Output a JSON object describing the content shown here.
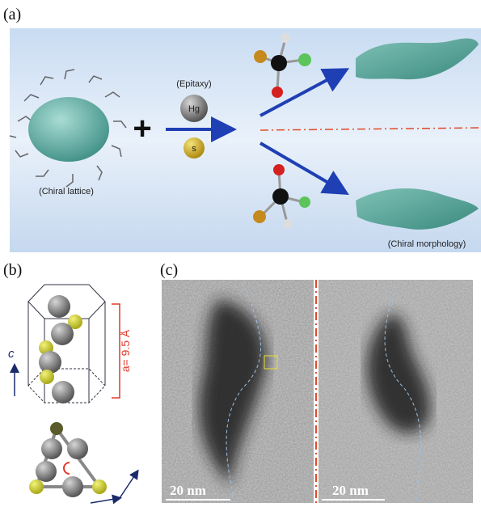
{
  "panels": {
    "a": {
      "label": "(a)",
      "plus": "+",
      "epitaxy": "(Epitaxy)",
      "hg": "Hg",
      "s": "s",
      "chiral_lattice": "(Chiral lattice)",
      "chiral_morphology": "(Chiral morphology)"
    },
    "b": {
      "label": "(b)",
      "axis_c": "c",
      "lattice_constant": "a= 9.5 Å"
    },
    "c": {
      "label": "(c)",
      "scale_left": "20 nm",
      "scale_right": "20 nm"
    }
  }
}
